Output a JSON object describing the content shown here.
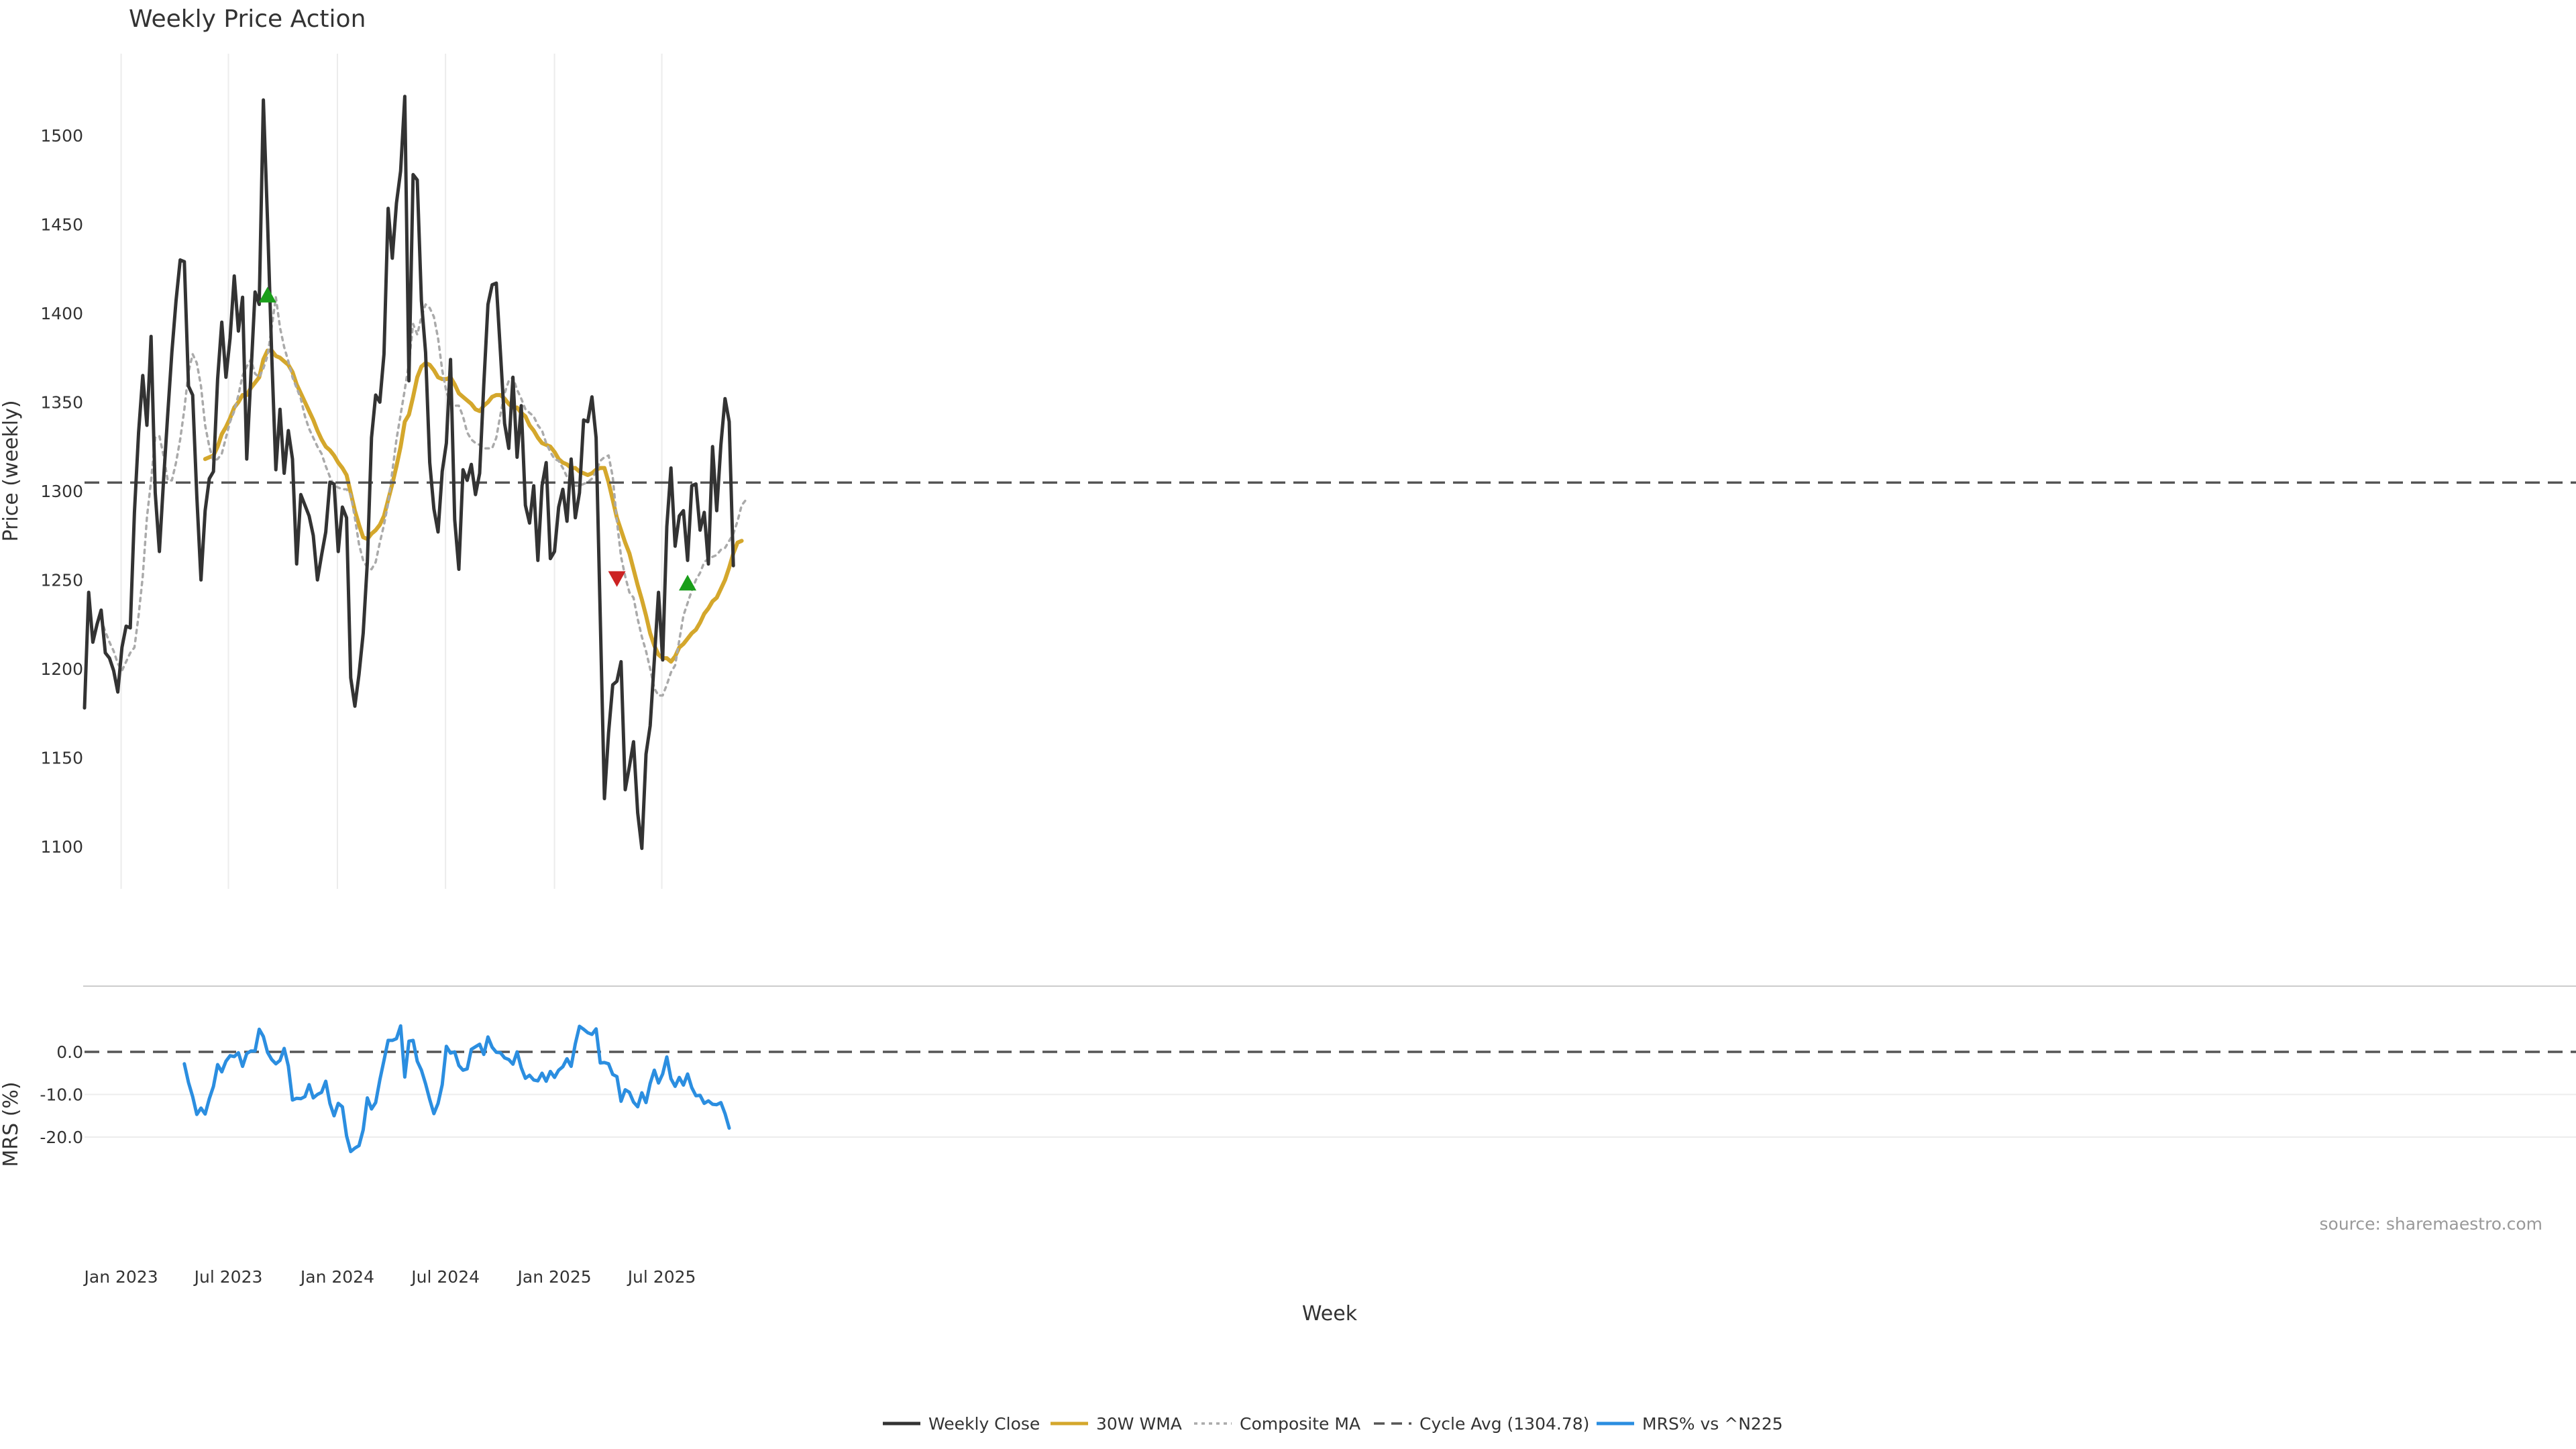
{
  "chart_data": [
    {
      "type": "line",
      "title": "Weekly Price Action",
      "ylabel": "Price (weekly)",
      "xlabel": "Week",
      "ylim": [
        1075,
        1545
      ],
      "yticks": [
        1100,
        1150,
        1200,
        1250,
        1300,
        1350,
        1400,
        1450,
        1500
      ],
      "x_start_week": 0,
      "x_month_ticks": [
        {
          "label": "Jan 2023",
          "week": 8.8
        },
        {
          "label": "Jul 2023",
          "week": 34.6
        },
        {
          "label": "Jan 2024",
          "week": 60.8
        },
        {
          "label": "Jul 2024",
          "week": 86.8
        },
        {
          "label": "Jan 2025",
          "week": 113.0
        },
        {
          "label": "Jul 2025",
          "week": 138.8
        }
      ],
      "series": [
        {
          "name": "Weekly Close",
          "color": "#333333",
          "start_week": 0,
          "values": [
            1178,
            1243,
            1215,
            1225,
            1233,
            1209,
            1206,
            1199,
            1187,
            1212,
            1224,
            1223,
            1288,
            1333,
            1365,
            1337,
            1387,
            1299,
            1266,
            1306,
            1343,
            1378,
            1407,
            1430,
            1429,
            1359,
            1354,
            1297,
            1250,
            1289,
            1307,
            1311,
            1363,
            1395,
            1364,
            1386,
            1421,
            1390,
            1409,
            1318,
            1365,
            1412,
            1405,
            1520,
            1452,
            1377,
            1312,
            1346,
            1310,
            1334,
            1318,
            1259,
            1298,
            1292,
            1286,
            1275,
            1250,
            1264,
            1277,
            1305,
            1304,
            1266,
            1291,
            1285,
            1195,
            1179,
            1197,
            1220,
            1260,
            1330,
            1354,
            1350,
            1377,
            1459,
            1431,
            1462,
            1480,
            1522,
            1362,
            1478,
            1475,
            1407,
            1378,
            1316,
            1290,
            1277,
            1311,
            1327,
            1374,
            1284,
            1256,
            1312,
            1306,
            1315,
            1298,
            1310,
            1360,
            1405,
            1416,
            1417,
            1378,
            1338,
            1324,
            1364,
            1319,
            1348,
            1292,
            1282,
            1303,
            1261,
            1303,
            1316,
            1262,
            1266,
            1291,
            1301,
            1283,
            1318,
            1285,
            1299,
            1340,
            1339,
            1353,
            1330,
            1229,
            1127,
            1164,
            1191,
            1193,
            1204,
            1132,
            1145,
            1159,
            1119,
            1099,
            1152,
            1168,
            1205,
            1243,
            1205,
            1280,
            1313,
            1269,
            1286,
            1289,
            1261,
            1303,
            1304,
            1278,
            1288,
            1259,
            1325,
            1289,
            1326,
            1352,
            1339,
            1258
          ]
        },
        {
          "name": "30W WMA",
          "color": "#d4a72c",
          "start_week": 29,
          "values": [
            1318,
            1319,
            1320,
            1325,
            1332,
            1336,
            1341,
            1347,
            1350,
            1354,
            1354,
            1358,
            1361,
            1364,
            1374,
            1379,
            1379,
            1376,
            1375,
            1373,
            1371,
            1367,
            1360,
            1355,
            1350,
            1345,
            1340,
            1334,
            1329,
            1325,
            1323,
            1320,
            1316,
            1313,
            1309,
            1299,
            1289,
            1281,
            1274,
            1273,
            1276,
            1278,
            1281,
            1286,
            1295,
            1304,
            1314,
            1325,
            1339,
            1343,
            1353,
            1364,
            1370,
            1372,
            1371,
            1368,
            1364,
            1363,
            1363,
            1364,
            1360,
            1355,
            1353,
            1351,
            1349,
            1346,
            1345,
            1348,
            1350,
            1353,
            1354,
            1354,
            1352,
            1349,
            1347,
            1347,
            1344,
            1342,
            1337,
            1334,
            1330,
            1327,
            1326,
            1325,
            1322,
            1318,
            1316,
            1315,
            1313,
            1313,
            1311,
            1310,
            1309,
            1310,
            1312,
            1313,
            1313,
            1305,
            1295,
            1285,
            1278,
            1271,
            1265,
            1256,
            1247,
            1239,
            1230,
            1220,
            1213,
            1208,
            1206,
            1206,
            1204,
            1207,
            1212,
            1214,
            1217,
            1220,
            1222,
            1226,
            1231,
            1234,
            1238,
            1240,
            1245,
            1250,
            1257,
            1265,
            1271,
            1272
          ]
        },
        {
          "name": "Composite MA",
          "color": "#aaaaaa",
          "dashed": true,
          "start_week": 4,
          "values": [
            1228,
            1221,
            1215,
            1210,
            1203,
            1199,
            1204,
            1209,
            1212,
            1230,
            1252,
            1285,
            1306,
            1330,
            1331,
            1320,
            1306,
            1306,
            1316,
            1329,
            1346,
            1367,
            1377,
            1372,
            1359,
            1337,
            1325,
            1317,
            1318,
            1321,
            1330,
            1339,
            1345,
            1354,
            1365,
            1370,
            1374,
            1366,
            1364,
            1369,
            1376,
            1392,
            1409,
            1392,
            1381,
            1373,
            1364,
            1358,
            1352,
            1342,
            1335,
            1330,
            1325,
            1321,
            1314,
            1308,
            1303,
            1302,
            1301,
            1301,
            1298,
            1285,
            1270,
            1261,
            1257,
            1256,
            1260,
            1271,
            1281,
            1293,
            1311,
            1329,
            1343,
            1357,
            1372,
            1394,
            1388,
            1398,
            1405,
            1403,
            1398,
            1386,
            1368,
            1356,
            1349,
            1348,
            1348,
            1342,
            1333,
            1329,
            1327,
            1326,
            1324,
            1324,
            1324,
            1330,
            1343,
            1355,
            1362,
            1364,
            1357,
            1352,
            1346,
            1344,
            1342,
            1337,
            1334,
            1327,
            1322,
            1318,
            1317,
            1313,
            1308,
            1304,
            1303,
            1303,
            1304,
            1305,
            1307,
            1311,
            1317,
            1319,
            1320,
            1308,
            1283,
            1263,
            1252,
            1243,
            1240,
            1228,
            1218,
            1210,
            1200,
            1189,
            1185,
            1185,
            1191,
            1198,
            1202,
            1216,
            1230,
            1237,
            1244,
            1250,
            1254,
            1260,
            1262,
            1263,
            1264,
            1267,
            1268,
            1272,
            1276,
            1283,
            1292,
            1295
          ]
        },
        {
          "name": "Cycle Avg (1304.78)",
          "color": "#555555",
          "dashed": true,
          "constant": 1304.78
        }
      ],
      "markers": [
        {
          "type": "buy",
          "symbol": "triangle-up",
          "color": "#1a9e1a",
          "week": 44,
          "value": 1410
        },
        {
          "type": "sell",
          "symbol": "triangle-down",
          "color": "#cc2222",
          "week": 128,
          "value": 1251
        },
        {
          "type": "buy",
          "symbol": "triangle-up",
          "color": "#1a9e1a",
          "week": 145,
          "value": 1248
        }
      ]
    },
    {
      "type": "line",
      "ylabel": "MRS (%)",
      "ylim": [
        -23.5,
        7.8
      ],
      "yticks": [
        0.0,
        -10.0,
        -20.0
      ],
      "ytick_labels": [
        "0.0",
        "-10.0",
        "-20.0"
      ],
      "reference_line": 0.0,
      "series": [
        {
          "name": "MRS% vs ^N225",
          "color": "#2b8ee0",
          "start_week": 24,
          "values": [
            -2.8,
            -7.2,
            -10.5,
            -14.7,
            -13.2,
            -14.6,
            -11,
            -8.1,
            -3,
            -4.7,
            -2.2,
            -0.9,
            -1.1,
            -0.2,
            -3.4,
            -0.4,
            0.2,
            0.2,
            5.3,
            3.6,
            -0.1,
            -1.8,
            -2.8,
            -2,
            0.8,
            -3.3,
            -11.3,
            -10.9,
            -11,
            -10.5,
            -7.7,
            -10.8,
            -10,
            -9.5,
            -6.9,
            -12.1,
            -15,
            -12.1,
            -12.9,
            -19.7,
            -23.4,
            -22.6,
            -22,
            -18.3,
            -10.8,
            -13.4,
            -11.9,
            -6.6,
            -2,
            2.7,
            2.7,
            3.1,
            6.1,
            -5.9,
            2.5,
            2.7,
            -2.2,
            -4.3,
            -7.5,
            -11.2,
            -14.5,
            -12.1,
            -7.7,
            1.3,
            -0.3,
            0,
            -3.2,
            -4.3,
            -4,
            0.6,
            1.2,
            1.8,
            -0.6,
            3.5,
            1.1,
            -0.1,
            -0.2,
            -1.4,
            -1.8,
            -2.9,
            0,
            -3.7,
            -6.2,
            -5.5,
            -6.6,
            -6.8,
            -5,
            -6.9,
            -4.6,
            -6,
            -4.3,
            -3.5,
            -1.6,
            -3.4,
            1.9,
            6,
            5.3,
            4.5,
            4.1,
            5.4,
            -2.6,
            -2.5,
            -2.8,
            -5.3,
            -5.8,
            -11.6,
            -8.9,
            -9.5,
            -11.8,
            -12.9,
            -9.6,
            -11.9,
            -7.4,
            -4.3,
            -7.3,
            -5.2,
            -1.2,
            -6.3,
            -8.1,
            -6,
            -7.8,
            -5.2,
            -8.4,
            -10.3,
            -10.2,
            -12.1,
            -11.5,
            -12.3,
            -12.4,
            -11.9,
            -14.5,
            -17.9
          ]
        }
      ]
    }
  ],
  "legend": [
    {
      "label": "Weekly Close",
      "color": "#333333",
      "style": "solid"
    },
    {
      "label": "30W WMA",
      "color": "#d4a72c",
      "style": "solid"
    },
    {
      "label": "Composite MA",
      "color": "#aaaaaa",
      "style": "dotted"
    },
    {
      "label": "Cycle Avg (1304.78)",
      "color": "#555555",
      "style": "dashed"
    },
    {
      "label": "MRS% vs ^N225",
      "color": "#2b8ee0",
      "style": "solid"
    }
  ],
  "source_note": "source: sharemaestro.com"
}
